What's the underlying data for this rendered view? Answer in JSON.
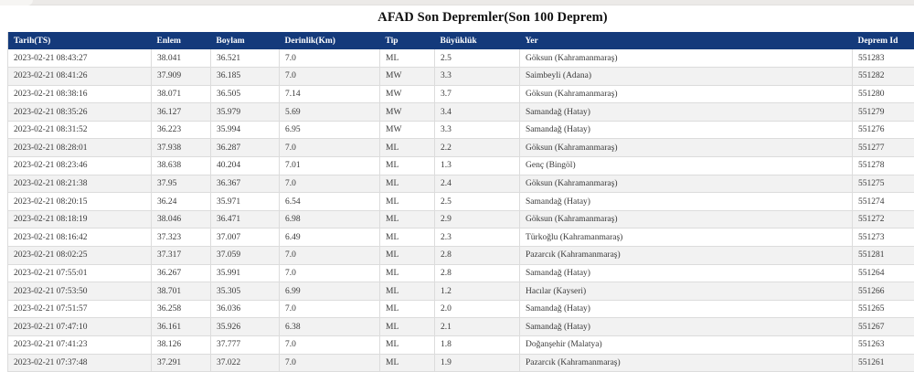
{
  "page": {
    "title": "AFAD Son Depremler(Son 100 Deprem)"
  },
  "table": {
    "columns": [
      "Tarih(TS)",
      "Enlem",
      "Boylam",
      "Derinlik(Km)",
      "Tip",
      "Büyüklük",
      "Yer",
      "Deprem Id"
    ],
    "rows": [
      [
        "2023-02-21 08:43:27",
        "38.041",
        "36.521",
        "7.0",
        "ML",
        "2.5",
        "Göksun (Kahramanmaraş)",
        "551283"
      ],
      [
        "2023-02-21 08:41:26",
        "37.909",
        "36.185",
        "7.0",
        "MW",
        "3.3",
        "Saimbeyli (Adana)",
        "551282"
      ],
      [
        "2023-02-21 08:38:16",
        "38.071",
        "36.505",
        "7.14",
        "MW",
        "3.7",
        "Göksun (Kahramanmaraş)",
        "551280"
      ],
      [
        "2023-02-21 08:35:26",
        "36.127",
        "35.979",
        "5.69",
        "MW",
        "3.4",
        "Samandağ (Hatay)",
        "551279"
      ],
      [
        "2023-02-21 08:31:52",
        "36.223",
        "35.994",
        "6.95",
        "MW",
        "3.3",
        "Samandağ (Hatay)",
        "551276"
      ],
      [
        "2023-02-21 08:28:01",
        "37.938",
        "36.287",
        "7.0",
        "ML",
        "2.2",
        "Göksun (Kahramanmaraş)",
        "551277"
      ],
      [
        "2023-02-21 08:23:46",
        "38.638",
        "40.204",
        "7.01",
        "ML",
        "1.3",
        "Genç (Bingöl)",
        "551278"
      ],
      [
        "2023-02-21 08:21:38",
        "37.95",
        "36.367",
        "7.0",
        "ML",
        "2.4",
        "Göksun (Kahramanmaraş)",
        "551275"
      ],
      [
        "2023-02-21 08:20:15",
        "36.24",
        "35.971",
        "6.54",
        "ML",
        "2.5",
        "Samandağ (Hatay)",
        "551274"
      ],
      [
        "2023-02-21 08:18:19",
        "38.046",
        "36.471",
        "6.98",
        "ML",
        "2.9",
        "Göksun (Kahramanmaraş)",
        "551272"
      ],
      [
        "2023-02-21 08:16:42",
        "37.323",
        "37.007",
        "6.49",
        "ML",
        "2.3",
        "Türkoğlu (Kahramanmaraş)",
        "551273"
      ],
      [
        "2023-02-21 08:02:25",
        "37.317",
        "37.059",
        "7.0",
        "ML",
        "2.8",
        "Pazarcık (Kahramanmaraş)",
        "551281"
      ],
      [
        "2023-02-21 07:55:01",
        "36.267",
        "35.991",
        "7.0",
        "ML",
        "2.8",
        "Samandağ (Hatay)",
        "551264"
      ],
      [
        "2023-02-21 07:53:50",
        "38.701",
        "35.305",
        "6.99",
        "ML",
        "1.2",
        "Hacılar (Kayseri)",
        "551266"
      ],
      [
        "2023-02-21 07:51:57",
        "36.258",
        "36.036",
        "7.0",
        "ML",
        "2.0",
        "Samandağ (Hatay)",
        "551265"
      ],
      [
        "2023-02-21 07:47:10",
        "36.161",
        "35.926",
        "6.38",
        "ML",
        "2.1",
        "Samandağ (Hatay)",
        "551267"
      ],
      [
        "2023-02-21 07:41:23",
        "38.126",
        "37.777",
        "7.0",
        "ML",
        "1.8",
        "Doğanşehir (Malatya)",
        "551263"
      ],
      [
        "2023-02-21 07:37:48",
        "37.291",
        "37.022",
        "7.0",
        "ML",
        "1.9",
        "Pazarcık (Kahramanmaraş)",
        "551261"
      ]
    ]
  },
  "colors": {
    "header_bg": "#143a7b",
    "header_text": "#ffffff",
    "row_stripe": "#f2f2f2",
    "border": "#dcdcdc"
  }
}
